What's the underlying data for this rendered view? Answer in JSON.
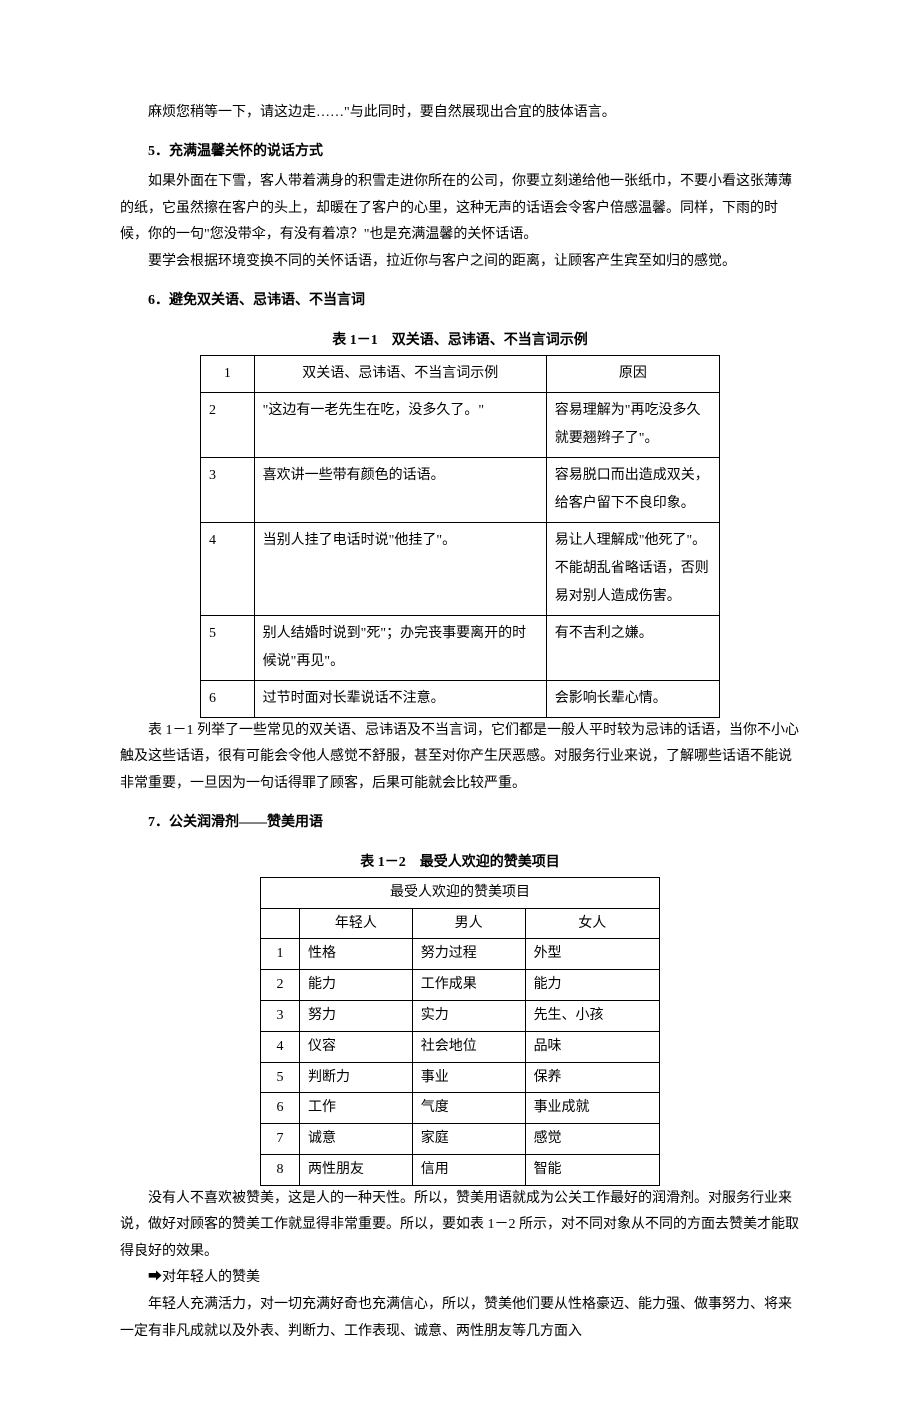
{
  "p0": "麻烦您稍等一下，请这边走……\"与此同时，要自然展现出合宜的肢体语言。",
  "h5": "5．充满温馨关怀的说话方式",
  "p5a": "如果外面在下雪，客人带着满身的积雪走进你所在的公司，你要立刻递给他一张纸巾，不要小看这张薄薄的纸，它虽然擦在客户的头上，却暖在了客户的心里，这种无声的话语会令客户倍感温馨。同样，下雨的时候，你的一句\"您没带伞，有没有着凉？\"也是充满温馨的关怀话语。",
  "p5b": "要学会根据环境变换不同的关怀话语，拉近你与客户之间的距离，让顾客产生宾至如归的感觉。",
  "h6": "6．避免双关语、忌讳语、不当言词",
  "t1_caption": "表 1－1　双关语、忌讳语、不当言词示例",
  "t1": {
    "header": [
      "1",
      "双关语、忌讳语、不当言词示例",
      "原因"
    ],
    "rows": [
      [
        "2",
        "\"这边有一老先生在吃，没多久了。\"",
        "容易理解为\"再吃没多久就要翘辫子了\"。"
      ],
      [
        "3",
        "喜欢讲一些带有颜色的话语。",
        "容易脱口而出造成双关，给客户留下不良印象。"
      ],
      [
        "4",
        "当别人挂了电话时说\"他挂了\"。",
        "易让人理解成\"他死了\"。不能胡乱省略话语，否则易对别人造成伤害。"
      ],
      [
        "5",
        "别人结婚时说到\"死\"；办完丧事要离开的时候说\"再见\"。",
        "有不吉利之嫌。"
      ],
      [
        "6",
        "过节时面对长辈说话不注意。",
        "会影响长辈心情。"
      ]
    ]
  },
  "p6a": "表 1－1 列举了一些常见的双关语、忌讳语及不当言词，它们都是一般人平时较为忌讳的话语，当你不小心触及这些话语，很有可能会令他人感觉不舒服，甚至对你产生厌恶感。对服务行业来说，了解哪些话语不能说非常重要，一旦因为一句话得罪了顾客，后果可能就会比较严重。",
  "h7": "7．公关润滑剂——赞美用语",
  "t2_caption": "表 1－2　最受人欢迎的赞美项目",
  "t2": {
    "title": "最受人欢迎的赞美项目",
    "header": [
      "",
      "年轻人",
      "男人",
      "女人"
    ],
    "rows": [
      [
        "1",
        "性格",
        "努力过程",
        "外型"
      ],
      [
        "2",
        "能力",
        "工作成果",
        "能力"
      ],
      [
        "3",
        "努力",
        "实力",
        "先生、小孩"
      ],
      [
        "4",
        "仪容",
        "社会地位",
        "品味"
      ],
      [
        "5",
        "判断力",
        "事业",
        "保养"
      ],
      [
        "6",
        "工作",
        "气度",
        "事业成就"
      ],
      [
        "7",
        "诚意",
        "家庭",
        "感觉"
      ],
      [
        "8",
        "两性朋友",
        "信用",
        "智能"
      ]
    ]
  },
  "p7a": "没有人不喜欢被赞美，这是人的一种天性。所以，赞美用语就成为公关工作最好的润滑剂。对服务行业来说，做好对顾客的赞美工作就显得非常重要。所以，要如表 1－2 所示，对不同对象从不同的方面去赞美才能取得良好的效果。",
  "p7b": "➡对年轻人的赞美",
  "p7c": "年轻人充满活力，对一切充满好奇也充满信心，所以，赞美他们要从性格豪迈、能力强、做事努力、将来一定有非凡成就以及外表、判断力、工作表现、诚意、两性朋友等几方面入"
}
